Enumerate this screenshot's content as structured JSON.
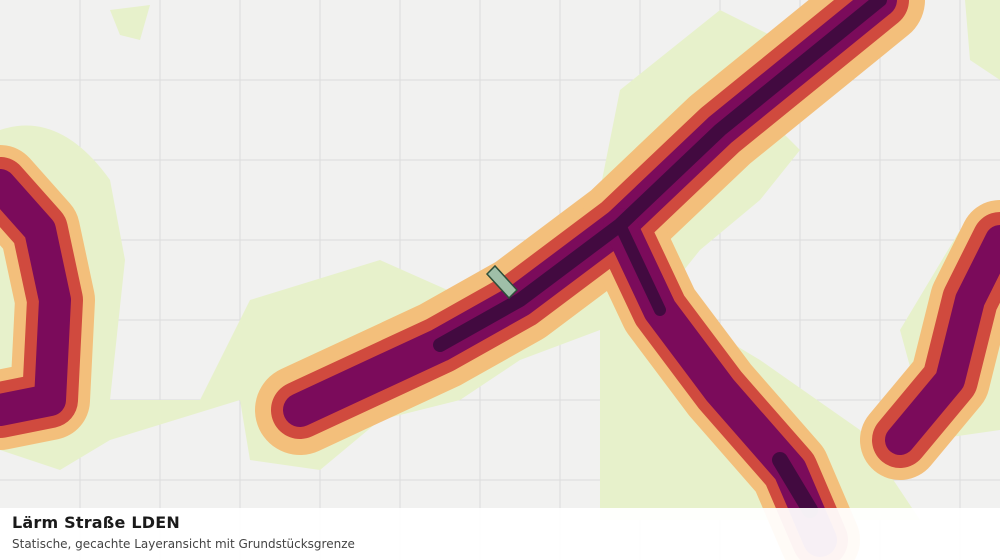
{
  "caption": {
    "title": "Lärm Straße LDEN",
    "subtitle": "Statische, gecachte Layeransicht mit Grundstücksgrenze"
  }
}
